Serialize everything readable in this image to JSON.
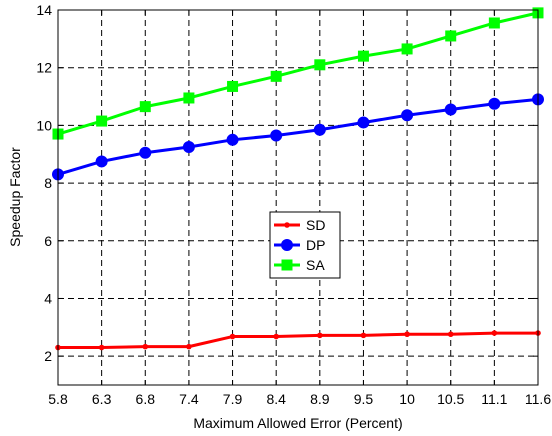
{
  "chart_data": {
    "type": "line",
    "title": "",
    "xlabel": "Maximum Allowed Error (Percent)",
    "ylabel": "Speedup Factor",
    "categories": [
      "5.8",
      "6.3",
      "6.8",
      "7.4",
      "7.9",
      "8.4",
      "8.9",
      "9.5",
      "10",
      "10.5",
      "11.1",
      "11.6"
    ],
    "ylim": [
      1,
      14
    ],
    "yticks": [
      2,
      4,
      6,
      8,
      10,
      12,
      14
    ],
    "grid": true,
    "legend_position": "center",
    "series": [
      {
        "name": "SD",
        "color": "#ff0000",
        "marker": "point",
        "values": [
          2.3,
          2.3,
          2.33,
          2.33,
          2.68,
          2.68,
          2.72,
          2.72,
          2.76,
          2.76,
          2.8,
          2.8
        ]
      },
      {
        "name": "DP",
        "color": "#0000ff",
        "marker": "circle",
        "values": [
          8.3,
          8.75,
          9.05,
          9.25,
          9.5,
          9.65,
          9.85,
          10.1,
          10.35,
          10.55,
          10.75,
          10.9
        ]
      },
      {
        "name": "SA",
        "color": "#00ff00",
        "marker": "square",
        "values": [
          9.7,
          10.15,
          10.65,
          10.95,
          11.35,
          11.7,
          12.1,
          12.4,
          12.65,
          13.1,
          13.55,
          13.9
        ]
      }
    ]
  }
}
